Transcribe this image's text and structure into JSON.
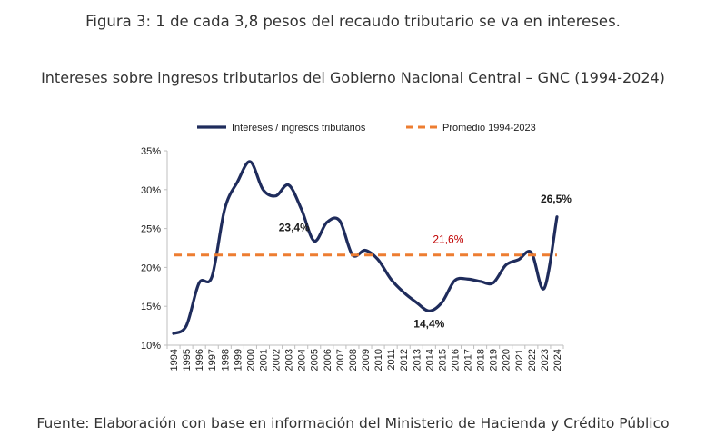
{
  "figure_caption": "Figura 3: 1 de cada 3,8 pesos del recaudo tributario se va en intereses.",
  "chart_subtitle": "Intereses sobre ingresos tributarios del Gobierno Nacional Central – GNC (1994-2024)",
  "source_note": "Fuente: Elaboración con base en información del Ministerio de Hacienda y Crédito Público",
  "chart_data": {
    "type": "line",
    "title": "Intereses sobre ingresos tributarios del Gobierno Nacional Central – GNC (1994-2024)",
    "xlabel": "",
    "ylabel": "",
    "categories": [
      "1994",
      "1995",
      "1996",
      "1997",
      "1998",
      "1999",
      "2000",
      "2001",
      "2002",
      "2003",
      "2004",
      "2005",
      "2006",
      "2007",
      "2008",
      "2009",
      "2010",
      "2011",
      "2012",
      "2013",
      "2014",
      "2015",
      "2016",
      "2017",
      "2018",
      "2019",
      "2020",
      "2021",
      "2022",
      "2023",
      "2024"
    ],
    "series": [
      {
        "name": "Intereses / ingresos tributarios",
        "color": "#1f2c5c",
        "style": "solid",
        "values": [
          11.5,
          12.5,
          18.0,
          18.8,
          27.5,
          31.0,
          33.6,
          30.0,
          29.2,
          30.6,
          27.5,
          23.4,
          25.8,
          26.0,
          21.6,
          22.2,
          21.0,
          18.5,
          16.8,
          15.5,
          14.4,
          15.5,
          18.3,
          18.5,
          18.2,
          18.0,
          20.3,
          21.0,
          21.9,
          17.3,
          26.5
        ]
      },
      {
        "name": "Promedio 1994-2023",
        "color": "#ed7d31",
        "style": "dashed",
        "constant": 21.6
      }
    ],
    "ylim": [
      10,
      35
    ],
    "yticks": [
      10,
      15,
      20,
      25,
      30,
      35
    ],
    "ytick_labels": [
      "10%",
      "15%",
      "20%",
      "25%",
      "30%",
      "35%"
    ],
    "grid": false,
    "legend_position": "top",
    "annotations": [
      {
        "text": "23,4%",
        "x": "2005",
        "y": 23.4
      },
      {
        "text": "14,4%",
        "x": "2014",
        "y": 14.4
      },
      {
        "text": "26,5%",
        "x": "2024",
        "y": 26.5
      },
      {
        "text": "21,6%",
        "x": "2015",
        "y": 21.6,
        "color": "#c00000"
      }
    ]
  }
}
